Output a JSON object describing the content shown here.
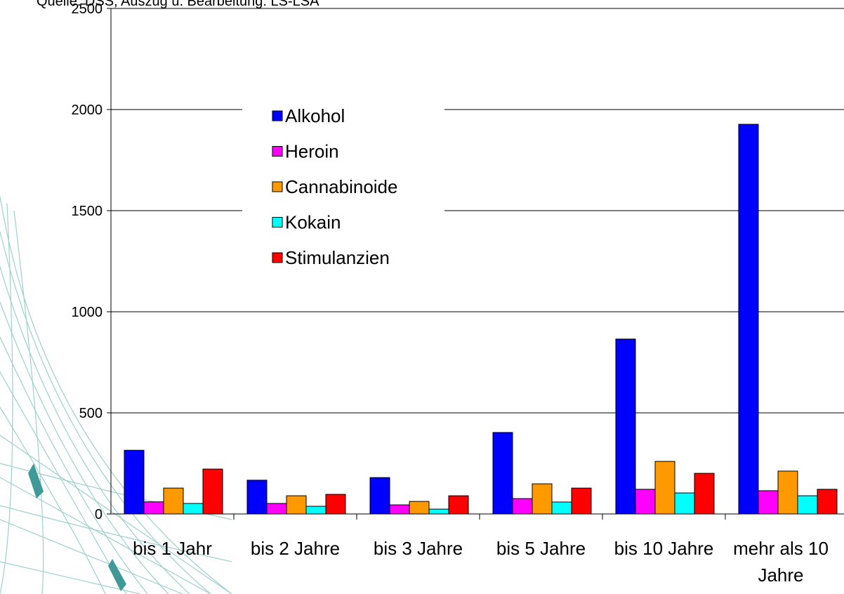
{
  "chart_data": {
    "type": "bar",
    "title": "Quelle: DSS, Auszug u. Bearbeitung: LS-LSA",
    "categories": [
      "bis 1 Jahr",
      "bis 2 Jahre",
      "bis 3 Jahre",
      "bis 5 Jahre",
      "bis 10 Jahre",
      "mehr als 10 Jahre"
    ],
    "series": [
      {
        "name": "Alkohol",
        "color": "#0000ff",
        "values": [
          315,
          167,
          180,
          403,
          865,
          1927
        ]
      },
      {
        "name": "Heroin",
        "color": "#ff00ff",
        "values": [
          60,
          52,
          45,
          76,
          122,
          115
        ]
      },
      {
        "name": "Cannabinoide",
        "color": "#ff9900",
        "values": [
          128,
          90,
          62,
          149,
          260,
          212
        ]
      },
      {
        "name": "Kokain",
        "color": "#00ffff",
        "values": [
          52,
          38,
          24,
          59,
          104,
          90
        ]
      },
      {
        "name": "Stimulanzien",
        "color": "#ff0000",
        "values": [
          222,
          97,
          90,
          128,
          201,
          122
        ]
      }
    ],
    "ylim": [
      0,
      2500
    ],
    "yticks": [
      0,
      500,
      1000,
      1500,
      2000,
      2500
    ],
    "grid": true
  }
}
